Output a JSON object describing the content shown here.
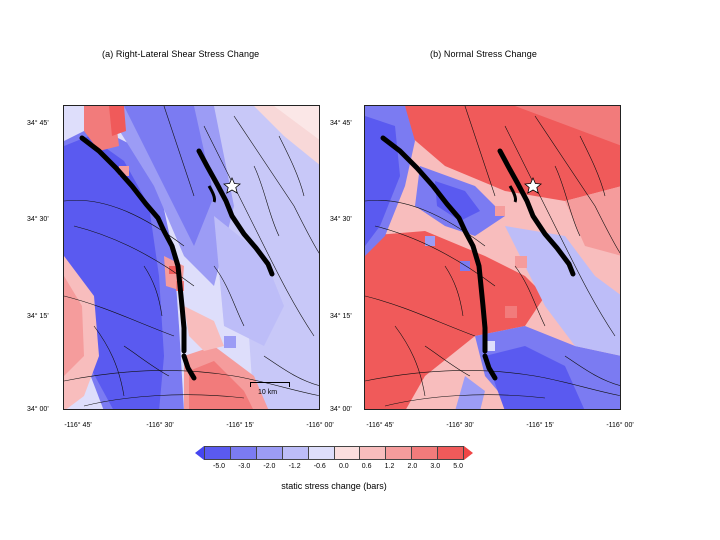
{
  "panels": [
    {
      "title": "(a) Right-Lateral Shear Stress Change",
      "lat_labels": [
        "34° 45'",
        "34° 30'",
        "34° 15'",
        "34° 00'"
      ],
      "lon_labels": [
        "-116° 45'",
        "-116° 30'",
        "-116° 15'",
        "-116° 00'"
      ],
      "scale_label": "10 km"
    },
    {
      "title": "(b) Normal Stress Change",
      "lat_labels": [
        "34° 45'",
        "34° 30'",
        "34° 15'",
        "34° 00'"
      ],
      "lon_labels": [
        "-116° 45'",
        "-116° 30'",
        "-116° 15'",
        "-116° 00'"
      ]
    }
  ],
  "colorbar": {
    "ticks": [
      "-5.0",
      "-3.0",
      "-2.0",
      "-1.2",
      "-0.6",
      "0.0",
      "0.6",
      "1.2",
      "2.0",
      "3.0",
      "5.0"
    ],
    "title": "static stress change (bars)",
    "colors": [
      "#5a5af0",
      "#7b7bf2",
      "#9c9cf5",
      "#bdbdf8",
      "#dedefb",
      "#fbdede",
      "#f8bdbd",
      "#f59c9c",
      "#f27b7b",
      "#f05a5a"
    ]
  },
  "legend_icons": [
    "epicenter-star-icon"
  ]
}
